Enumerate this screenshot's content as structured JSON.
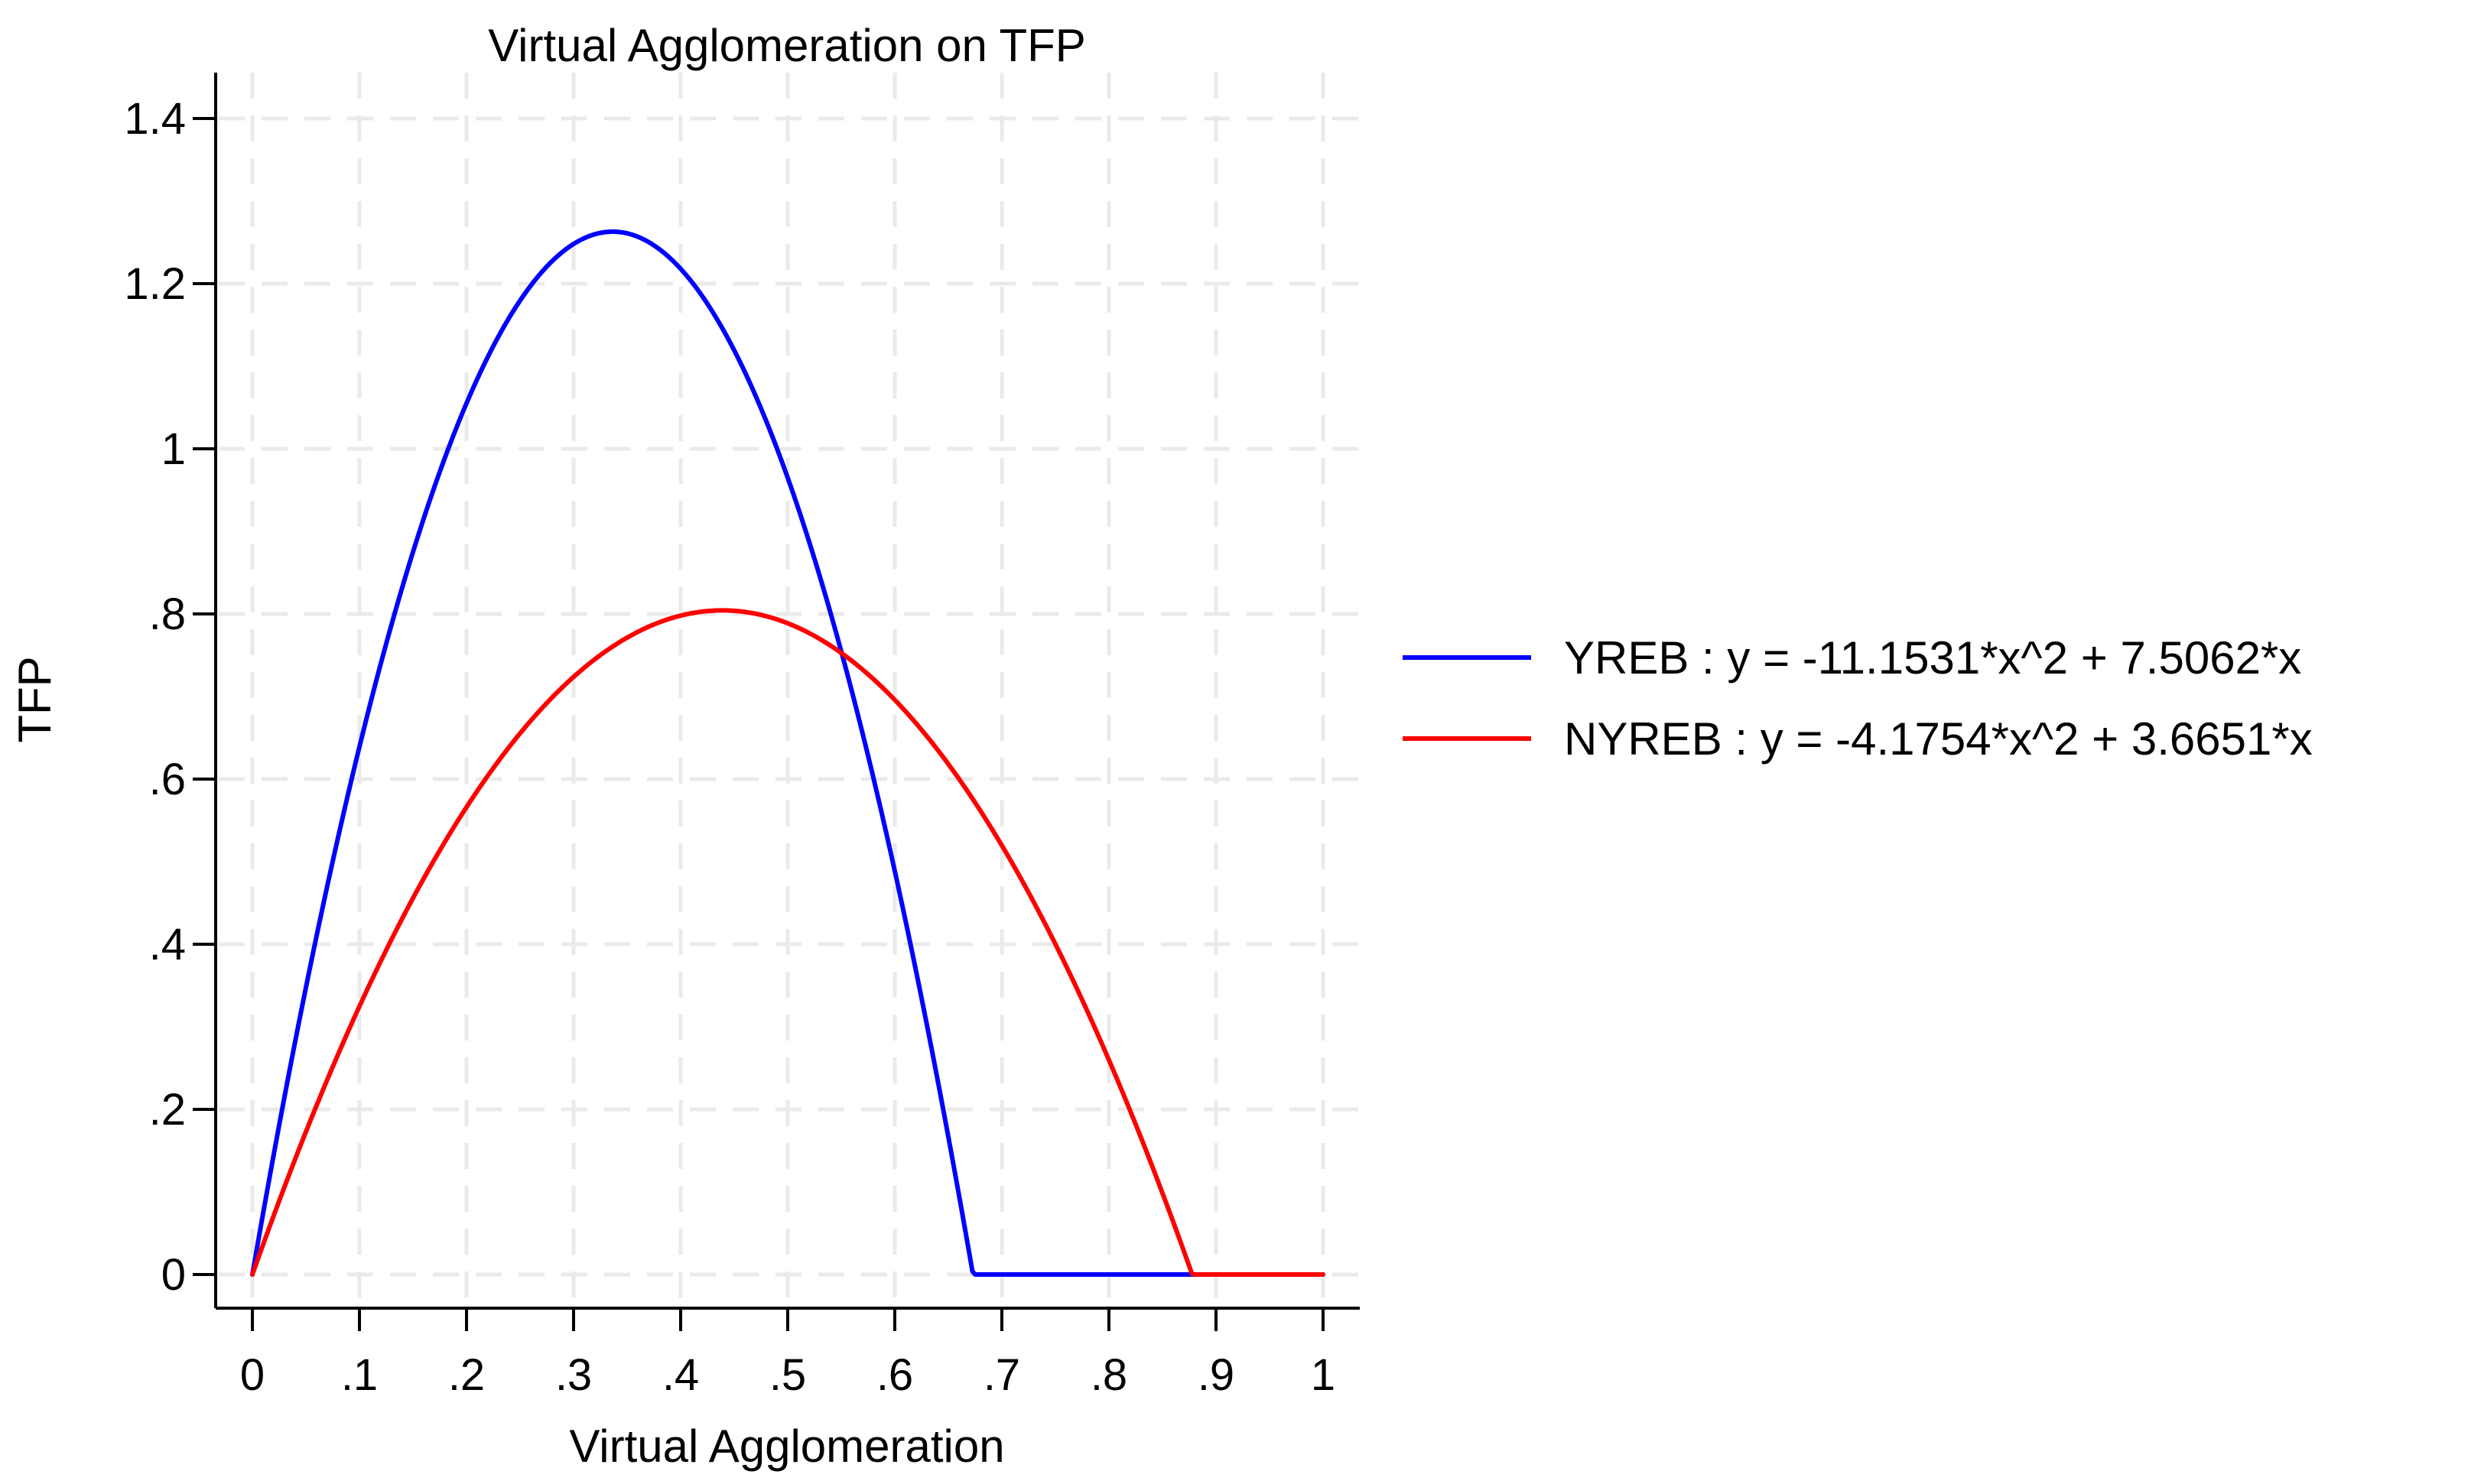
{
  "chart_data": {
    "type": "line",
    "title": "Virtual Agglomeration on TFP",
    "xlabel": "Virtual Agglomeration",
    "ylabel": "TFP",
    "xlim": [
      0,
      1
    ],
    "ylim": [
      0,
      1.4
    ],
    "x_ticks": [
      0,
      0.1,
      0.2,
      0.3,
      0.4,
      0.5,
      0.6,
      0.7,
      0.8,
      0.9,
      1
    ],
    "x_tick_labels": [
      "0",
      ".1",
      ".2",
      ".3",
      ".4",
      ".5",
      ".6",
      ".7",
      ".8",
      ".9",
      "1"
    ],
    "y_ticks": [
      0,
      0.2,
      0.4,
      0.6,
      0.8,
      1,
      1.2,
      1.4
    ],
    "y_tick_labels": [
      "0",
      ".2",
      ".4",
      ".6",
      ".8",
      "1",
      "1.2",
      "1.4"
    ],
    "grid": true,
    "legend_position": "right",
    "series": [
      {
        "name": "YREB : y = -11.1531*x^2 + 7.5062*x",
        "color": "#0000ff",
        "a": -11.1531,
        "b": 7.5062
      },
      {
        "name": "NYREB : y = -4.1754*x^2 + 3.6651*x",
        "color": "#ff0000",
        "a": -4.1754,
        "b": 3.6651
      }
    ]
  }
}
